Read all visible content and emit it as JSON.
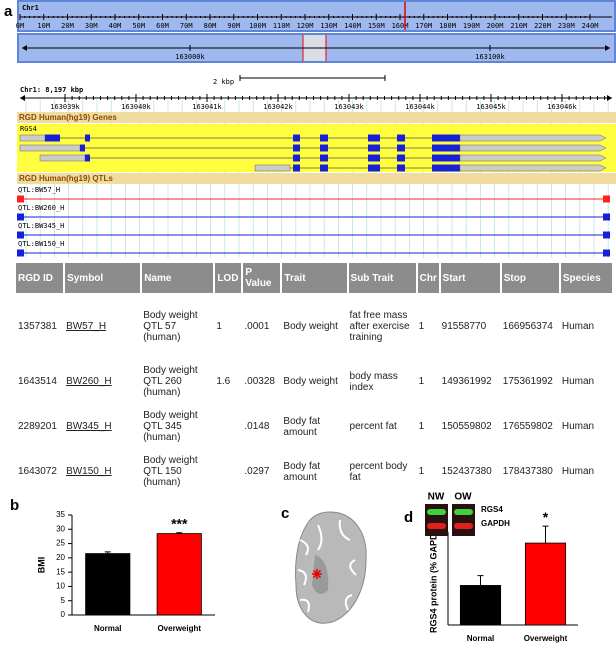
{
  "panels": [
    "a",
    "b",
    "c",
    "d"
  ],
  "browser": {
    "chromosome": "Chr1",
    "chrom_ticks": [
      "0M",
      "10M",
      "20M",
      "30M",
      "40M",
      "50M",
      "60M",
      "70M",
      "80M",
      "90M",
      "100M",
      "110M",
      "120M",
      "130M",
      "140M",
      "150M",
      "160M",
      "170M",
      "180M",
      "190M",
      "200M",
      "210M",
      "220M",
      "230M",
      "240M"
    ],
    "zoom_ticks": [
      "163000k",
      "163100k"
    ],
    "scale": "2 kbp",
    "region": "Chr1: 8,197 kbp",
    "region_ticks": [
      "163039k",
      "163040k",
      "163041k",
      "163042k",
      "163043k",
      "163044k",
      "163045k",
      "163046k"
    ],
    "genes_track": "RGD Human(hg19) Genes",
    "gene": "RGS4",
    "qtl_track": "RGD Human(hg19) QTLs",
    "qtls": [
      "QTL:BW57_H",
      "QTL:BW260_H",
      "QTL:BW345_H",
      "QTL:BW150_H"
    ]
  },
  "table": {
    "header": [
      "RGD ID",
      "Symbol",
      "Name",
      "LOD",
      "P Value",
      "Trait",
      "Sub Trait",
      "Chr",
      "Start",
      "Stop",
      "Species"
    ],
    "rows": [
      [
        "1357381",
        "BW57_H",
        "Body weight QTL 57 (human)",
        "1",
        ".0001",
        "Body weight",
        "fat free mass after exercise training",
        "1",
        "91558770",
        "166956374",
        "Human"
      ],
      [
        "1643514",
        "BW260_H",
        "Body weight QTL 260 (human)",
        "1.6",
        ".00328",
        "Body weight",
        "body mass index",
        "1",
        "149361992",
        "175361992",
        "Human"
      ],
      [
        "2289201",
        "BW345_H",
        "Body weight QTL 345 (human)",
        null,
        ".0148",
        "Body fat amount",
        "percent fat",
        "1",
        "150559802",
        "176559802",
        "Human"
      ],
      [
        "1643072",
        "BW150_H",
        "Body weight QTL 150 (human)",
        null,
        ".0297",
        "Body fat amount",
        "percent body fat",
        "1",
        "152437380",
        "178437380",
        "Human"
      ]
    ]
  },
  "chart_data": [
    {
      "type": "bar",
      "categories": [
        "Normal",
        "Overweight"
      ],
      "values": [
        21.5,
        28.5
      ],
      "errors": [
        0.6,
        0.3
      ],
      "colors": [
        "#000000",
        "#ff0000"
      ],
      "ylabel": "BMI",
      "ylim": [
        0,
        35
      ],
      "yticks": [
        0,
        5,
        10,
        15,
        20,
        25,
        30,
        35
      ],
      "annotation": "***"
    },
    {
      "type": "bar",
      "categories": [
        "Normal",
        "Overweight"
      ],
      "values": [
        2.8,
        5.8
      ],
      "errors": [
        0.7,
        1.2
      ],
      "colors": [
        "#000000",
        "#ff0000"
      ],
      "ylabel": "RGS4 protein (% GAPDH)",
      "ylim": [
        0,
        8
      ],
      "annotation": "*",
      "blot_labels": [
        "NW",
        "OW"
      ],
      "blot_rows": [
        "RGS4",
        "GAPDH"
      ]
    }
  ]
}
